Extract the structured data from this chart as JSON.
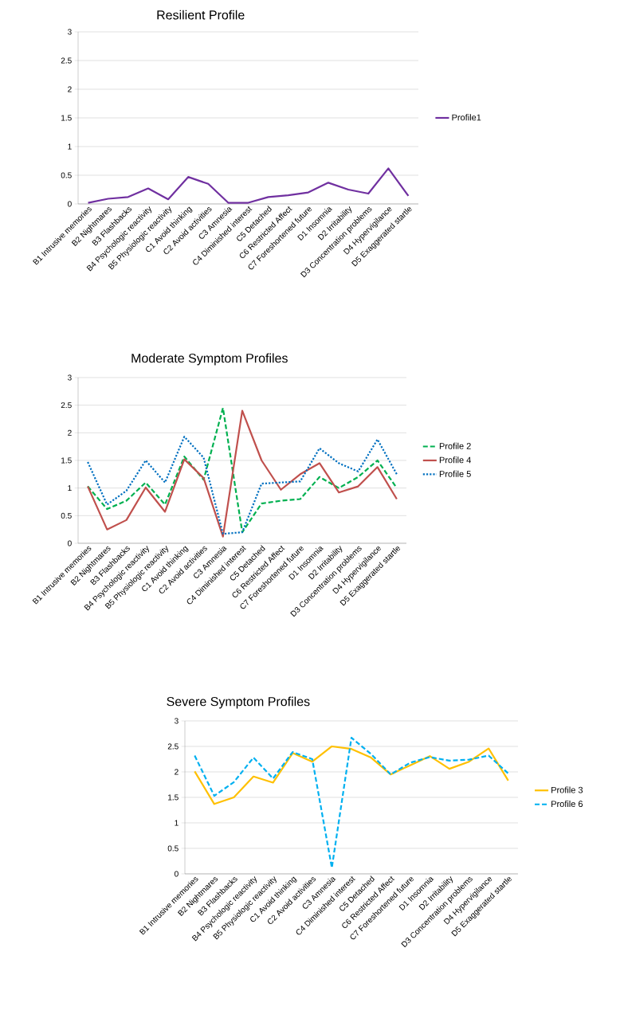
{
  "chart_data": [
    {
      "type": "line",
      "title": "Resilient Profile",
      "categories": [
        "B1 Intrusive memories",
        "B2 Nightmares",
        "B3 Flashbacks",
        "B4 Psychologic reactivity",
        "B5 Physiologic reactivity",
        "C1 Avoid thinking",
        "C2 Avoid activities",
        "C3 Amnesia",
        "C4 Diminished interest",
        "C5 Detached",
        "C6 Restricted Affect",
        "C7 Foreshortened future",
        "D1 Insomnia",
        "D2 Irritability",
        "D3 Concentration problems",
        "D4 Hypervigilance",
        "D5 Exaggerated startle"
      ],
      "series": [
        {
          "name": "Profile1",
          "color": "#7030a0",
          "line_style": "solid",
          "values": [
            0.02,
            0.09,
            0.12,
            0.27,
            0.08,
            0.47,
            0.35,
            0.02,
            0.02,
            0.12,
            0.15,
            0.2,
            0.37,
            0.25,
            0.18,
            0.62,
            0.14
          ]
        }
      ],
      "ylim": [
        0,
        3
      ],
      "yticks": [
        0,
        0.5,
        1,
        1.5,
        2,
        2.5,
        3
      ],
      "grid": "y",
      "legend": "right"
    },
    {
      "type": "line",
      "title": "Moderate Symptom Profiles",
      "categories": [
        "B1 Intrusive memories",
        "B2 Nightmares",
        "B3 Flashbacks",
        "B4 Psychologic reactivity",
        "B5 Physiologic reactivity",
        "C1 Avoid thinking",
        "C2 Avoid activities",
        "C3 Amnesia",
        "C4 Diminished interest",
        "C5 Detached",
        "C6 Restricted Affect",
        "C7 Foreshortened future",
        "D1 Insomnia",
        "D2 Irritability",
        "D3 Concentration problems",
        "D4 Hypervigilance",
        "D5 Exaggerated startle"
      ],
      "series": [
        {
          "name": "Profile 2",
          "color": "#00b050",
          "line_style": "dashed",
          "values": [
            1.03,
            0.62,
            0.77,
            1.1,
            0.7,
            1.57,
            1.15,
            2.45,
            0.2,
            0.72,
            0.77,
            0.8,
            1.2,
            1.0,
            1.2,
            1.5,
            1.0
          ]
        },
        {
          "name": "Profile 4",
          "color": "#c0504d",
          "line_style": "solid",
          "values": [
            1.03,
            0.25,
            0.42,
            1.01,
            0.57,
            1.52,
            1.18,
            0.12,
            2.4,
            1.5,
            0.97,
            1.25,
            1.45,
            0.92,
            1.03,
            1.38,
            0.8
          ]
        },
        {
          "name": "Profile 5",
          "color": "#0070c0",
          "line_style": "dotted",
          "values": [
            1.47,
            0.7,
            0.95,
            1.5,
            1.1,
            1.93,
            1.55,
            0.17,
            0.2,
            1.08,
            1.1,
            1.12,
            1.72,
            1.45,
            1.3,
            1.88,
            1.25
          ]
        }
      ],
      "ylim": [
        0,
        3
      ],
      "yticks": [
        0,
        0.5,
        1,
        1.5,
        2,
        2.5,
        3
      ],
      "grid": "y",
      "legend": "right"
    },
    {
      "type": "line",
      "title": "Severe Symptom Profiles",
      "categories": [
        "B1 Intrusive memories",
        "B2 Nightmares",
        "B3 Flashbacks",
        "B4 Psychologic reactivity",
        "B5 Physiologic reactivity",
        "C1 Avoid thinking",
        "C2 Avoid activities",
        "C3 Amnesia",
        "C4 Diminished interest",
        "C5 Detached",
        "C6 Restricted Affect",
        "C7 Foreshortened future",
        "D1 Insomnia",
        "D2 Irritability",
        "D3 Concentration problems",
        "D4 Hypervigilance",
        "D5 Exaggerated startle"
      ],
      "series": [
        {
          "name": "Profile 3",
          "color": "#ffc000",
          "line_style": "solid",
          "values": [
            2.01,
            1.37,
            1.5,
            1.91,
            1.79,
            2.37,
            2.2,
            2.5,
            2.45,
            2.28,
            1.95,
            2.13,
            2.31,
            2.06,
            2.2,
            2.46,
            1.83
          ]
        },
        {
          "name": "Profile 6",
          "color": "#00b0f0",
          "line_style": "dashed",
          "values": [
            2.32,
            1.53,
            1.8,
            2.28,
            1.87,
            2.39,
            2.25,
            0.12,
            2.67,
            2.35,
            1.95,
            2.18,
            2.29,
            2.22,
            2.24,
            2.32,
            1.97
          ]
        }
      ],
      "ylim": [
        0,
        3
      ],
      "yticks": [
        0,
        0.5,
        1,
        1.5,
        2,
        2.5,
        3
      ],
      "grid": "y",
      "legend": "right"
    }
  ]
}
